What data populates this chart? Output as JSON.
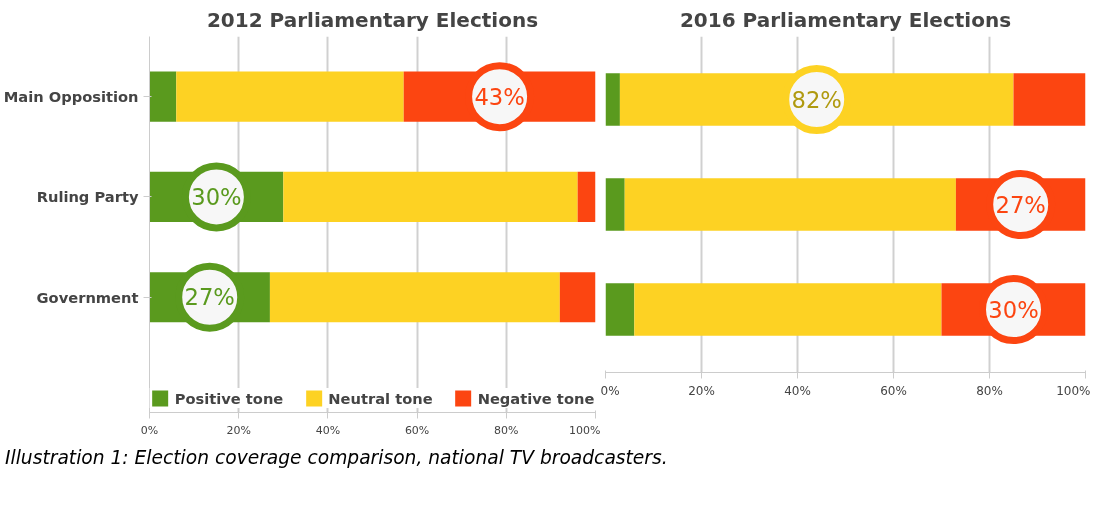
{
  "chart_data": [
    {
      "type": "bar",
      "orientation": "horizontal",
      "stacked": true,
      "title": "2012 Parliamentary Elections",
      "categories": [
        "Main Opposition",
        "Ruling Party",
        "Government"
      ],
      "series": [
        {
          "name": "Positive tone",
          "color": "#5a9a1e",
          "values": [
            6,
            30,
            27
          ],
          "value_labels": [
            null,
            "30%",
            "27%"
          ]
        },
        {
          "name": "Neutral tone",
          "color": "#fdd223",
          "values": [
            51,
            66,
            65
          ],
          "value_labels": [
            null,
            null,
            null
          ]
        },
        {
          "name": "Negative tone",
          "color": "#fc4511",
          "values": [
            43,
            4,
            8
          ],
          "value_labels": [
            "43%",
            null,
            null
          ]
        }
      ],
      "xlim": [
        0,
        100
      ],
      "xticks": [
        {
          "value": 0,
          "label": "0%"
        },
        {
          "value": 20,
          "label": "20%"
        },
        {
          "value": 40,
          "label": "40%"
        },
        {
          "value": 60,
          "label": "60%"
        },
        {
          "value": 80,
          "label": "80%"
        },
        {
          "value": 100,
          "label": "100%"
        }
      ],
      "grid": "x",
      "legend": "bottom",
      "annotations": [
        "Illustration 1: Election coverage comparison, national TV broadcasters."
      ]
    },
    {
      "type": "bar",
      "orientation": "horizontal",
      "stacked": true,
      "title": "2016 Parliamentary Elections",
      "categories": [
        null,
        null,
        null
      ],
      "series": [
        {
          "color": "#5a9a1e",
          "values": [
            3,
            4,
            6
          ],
          "value_labels": [
            null,
            null,
            null
          ]
        },
        {
          "color": "#fdd223",
          "values": [
            82,
            69,
            64
          ],
          "value_labels": [
            "82%",
            null,
            null
          ]
        },
        {
          "color": "#fc4511",
          "values": [
            15,
            27,
            30
          ],
          "value_labels": [
            null,
            "27%",
            "30%"
          ]
        }
      ],
      "xlim": [
        0,
        100
      ],
      "xticks": [
        {
          "value": 0,
          "label": "0%"
        },
        {
          "value": 20,
          "label": "20%"
        },
        {
          "value": 40,
          "label": "40%"
        },
        {
          "value": 60,
          "label": "60%"
        },
        {
          "value": 80,
          "label": "80%"
        },
        {
          "value": 100,
          "label": "100%"
        }
      ],
      "grid": "x",
      "tick_labels": "x"
    }
  ]
}
